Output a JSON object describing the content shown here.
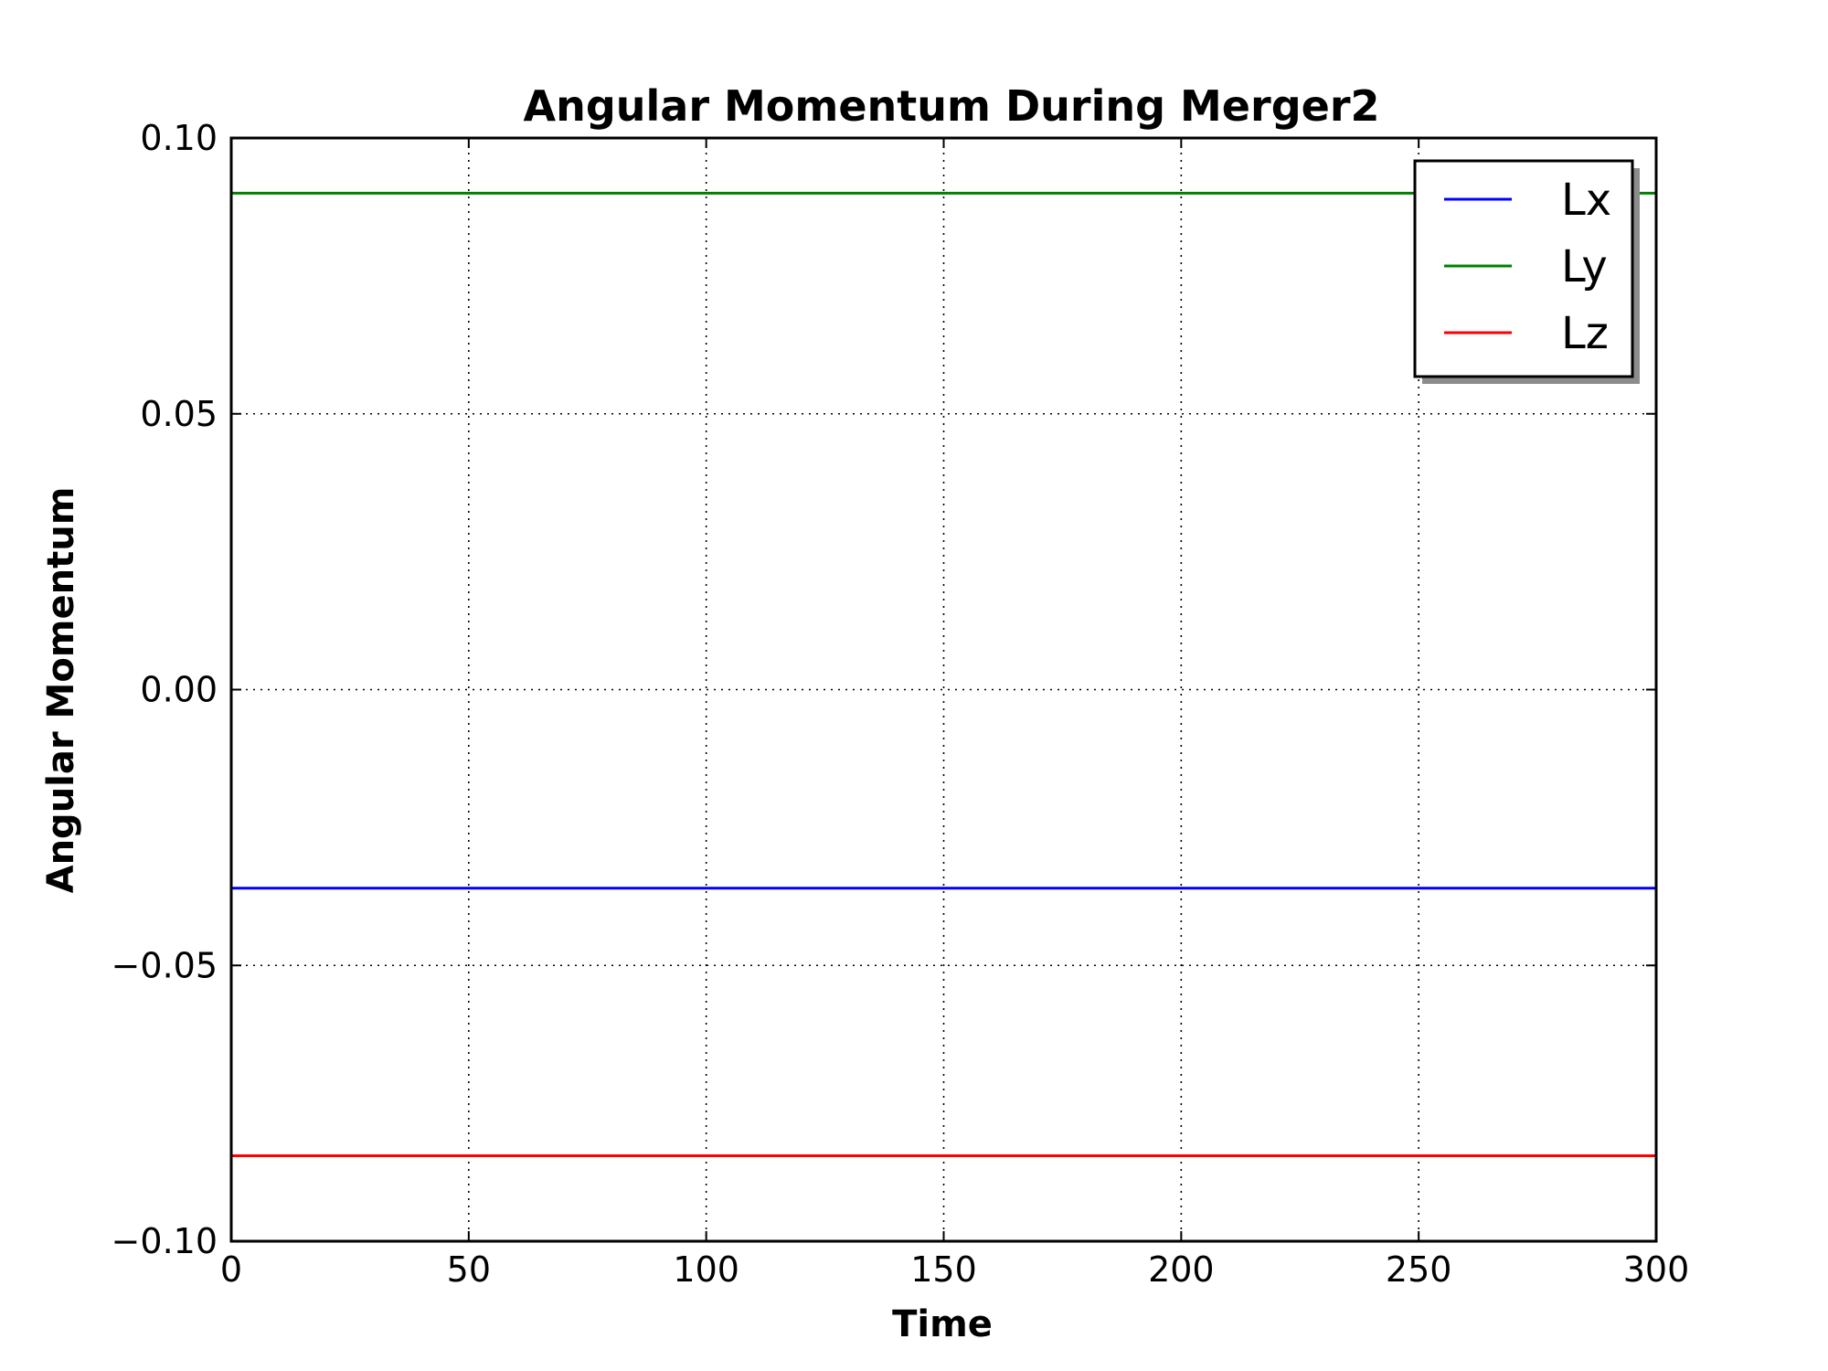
{
  "chart_data": {
    "type": "line",
    "title": "Angular Momentum During Merger2",
    "xlabel": "Time",
    "ylabel": "Angular Momentum",
    "xlim": [
      0,
      300
    ],
    "ylim": [
      -0.1,
      0.1
    ],
    "x_ticks": [
      0,
      50,
      100,
      150,
      200,
      250,
      300
    ],
    "y_ticks": [
      -0.1,
      -0.05,
      0.0,
      0.05,
      0.1
    ],
    "x_tick_labels": [
      "0",
      "50",
      "100",
      "150",
      "200",
      "250",
      "300"
    ],
    "y_tick_labels": [
      "−0.10",
      "−0.05",
      "0.00",
      "0.05",
      "0.10"
    ],
    "grid": true,
    "legend_position": "top-right",
    "series": [
      {
        "name": "Lx",
        "color": "#0000ff",
        "x": [
          0,
          300
        ],
        "y": [
          -0.036,
          -0.036
        ]
      },
      {
        "name": "Ly",
        "color": "#008000",
        "x": [
          0,
          300
        ],
        "y": [
          0.09,
          0.09
        ]
      },
      {
        "name": "Lz",
        "color": "#ff0000",
        "x": [
          0,
          300
        ],
        "y": [
          -0.0845,
          -0.0845
        ]
      }
    ]
  }
}
